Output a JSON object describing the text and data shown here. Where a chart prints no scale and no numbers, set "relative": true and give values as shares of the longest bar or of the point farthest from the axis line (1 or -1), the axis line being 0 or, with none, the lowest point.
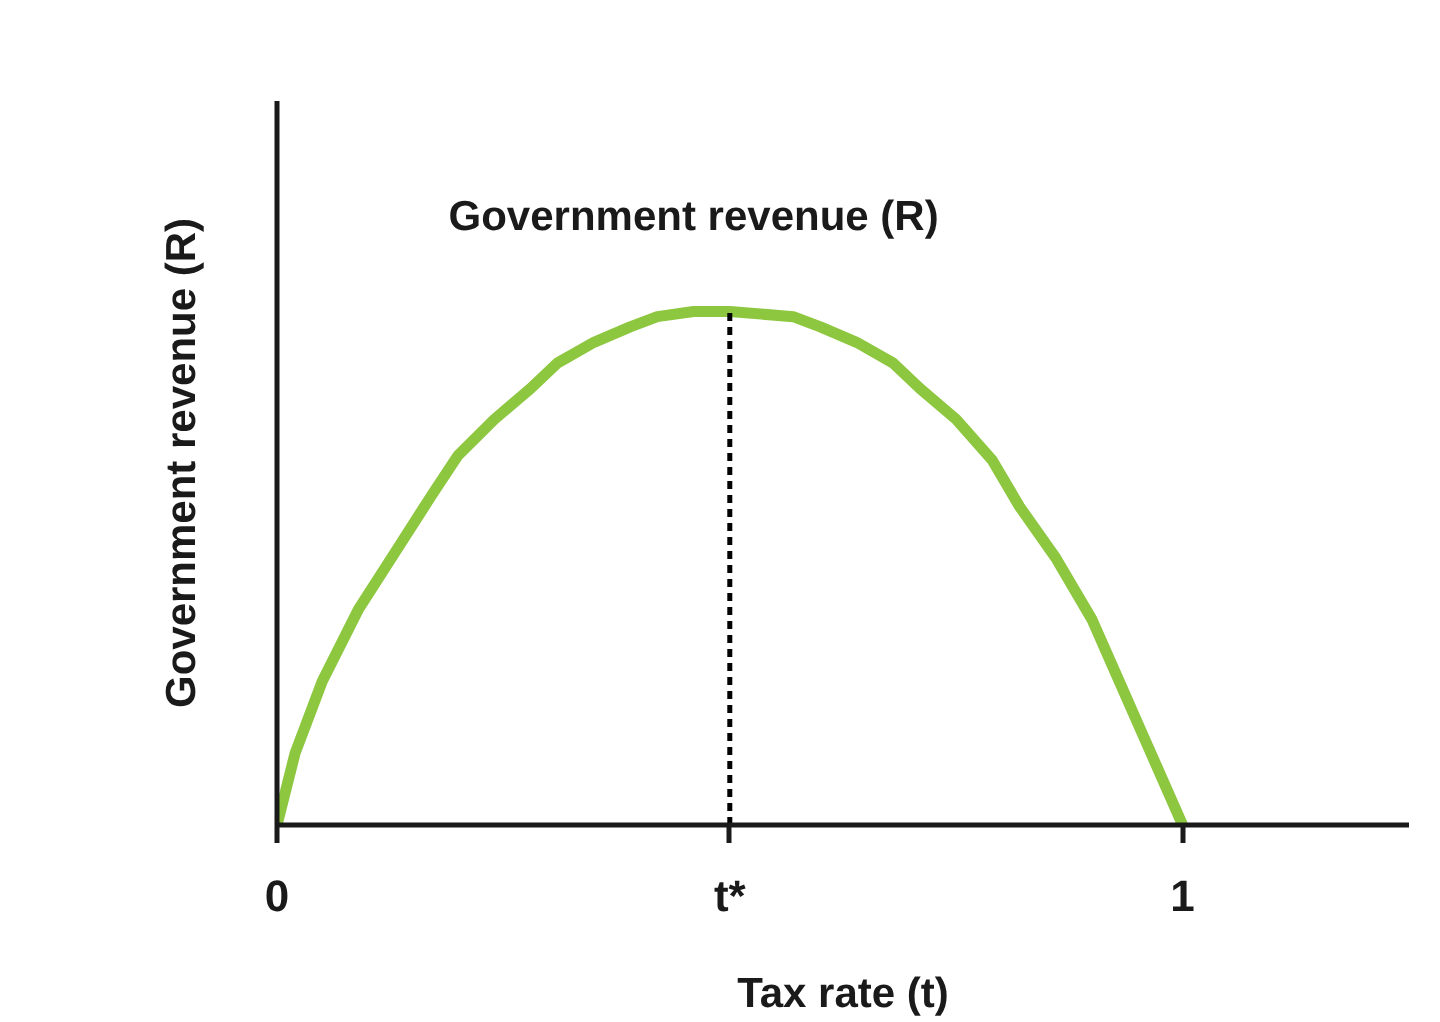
{
  "chart_data": {
    "type": "line",
    "xlabel": "Tax rate (t)",
    "ylabel": "Government revenue (R)",
    "relative": true,
    "xlim": [
      0,
      1.25
    ],
    "xticks": [
      0,
      {
        "value": 0.5,
        "label": "t*"
      },
      1
    ],
    "series": [
      {
        "name": "Government revenue (R)",
        "color": "#8dc63f",
        "x": [
          0,
          0.02,
          0.05,
          0.09,
          0.13,
          0.17,
          0.2,
          0.24,
          0.28,
          0.31,
          0.35,
          0.39,
          0.42,
          0.46,
          0.5,
          0.57,
          0.6,
          0.64,
          0.68,
          0.71,
          0.75,
          0.79,
          0.82,
          0.86,
          0.9,
          0.93,
          0.96,
          1
        ],
        "values": [
          0,
          0.14,
          0.28,
          0.42,
          0.53,
          0.64,
          0.72,
          0.79,
          0.85,
          0.9,
          0.94,
          0.97,
          0.99,
          1,
          1,
          0.99,
          0.97,
          0.94,
          0.9,
          0.85,
          0.79,
          0.71,
          0.62,
          0.52,
          0.4,
          0.28,
          0.16,
          0
        ]
      }
    ],
    "ref_lines": [
      {
        "axis": "x",
        "value": 0.5,
        "color": "#000000",
        "line_style": "dashed"
      }
    ],
    "grid": false,
    "marker": "none",
    "line_style": "solid"
  }
}
